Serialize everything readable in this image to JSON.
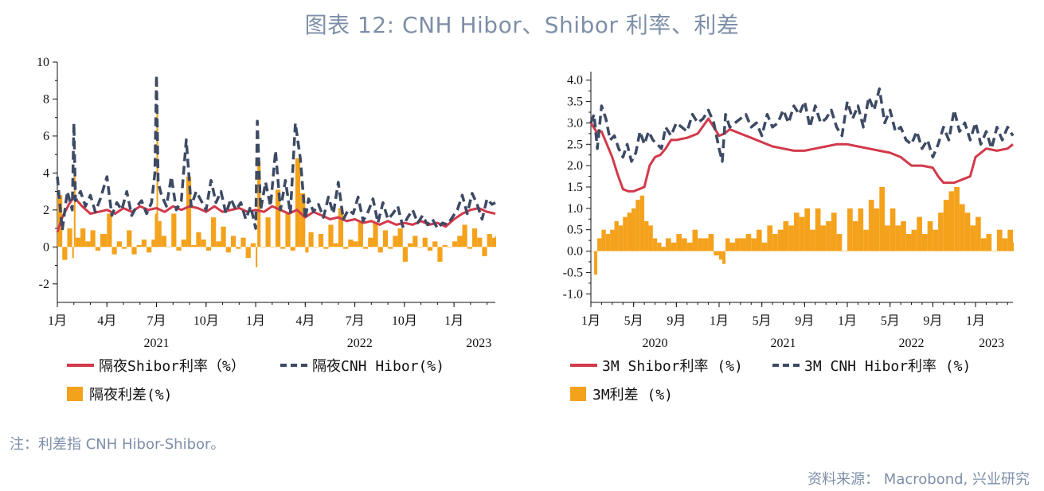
{
  "title": "图表 12: CNH Hibor、Shibor 利率、利差",
  "note": "注：利差指 CNH Hibor-Shibor。",
  "source": "资料来源： Macrobond, 兴业研究",
  "colors": {
    "shibor": "#d23a4b",
    "hibor": "#3d4a64",
    "spread": "#f4a21c",
    "title": "#7e8fa8"
  },
  "legend_left": {
    "shibor": "隔夜Shibor利率（%）",
    "hibor": "隔夜CNH Hibor(%)",
    "spread": "隔夜利差(%)"
  },
  "legend_right": {
    "shibor": "3M Shibor利率 (%)",
    "hibor": "3M CNH Hibor利率 (%)",
    "spread": "3M利差 (%)"
  },
  "chart_data": [
    {
      "type": "line",
      "panel": "left",
      "ylim": [
        -3,
        10
      ],
      "yticks": [
        -2,
        0,
        2,
        4,
        6,
        8,
        10
      ],
      "x_range_months": [
        0,
        26.5
      ],
      "xtick_months": [
        0,
        3,
        6,
        9,
        12,
        15,
        18,
        21,
        24
      ],
      "xtick_labels": [
        "1月",
        "4月",
        "7月",
        "10月",
        "1月",
        "4月",
        "7月",
        "10月",
        "1月"
      ],
      "year_labels": [
        {
          "label": "2021",
          "month": 6
        },
        {
          "label": "2022",
          "month": 18.3
        },
        {
          "label": "2023",
          "month": 25.5
        }
      ],
      "series": [
        {
          "name": "隔夜Shibor利率（%）",
          "style": "solid",
          "x": [
            0,
            0.3,
            0.7,
            1.0,
            1.5,
            2.0,
            2.5,
            3.0,
            3.5,
            4.0,
            4.5,
            5.0,
            5.5,
            6.0,
            6.5,
            7.0,
            7.5,
            8.0,
            8.5,
            9.0,
            9.5,
            10.0,
            10.5,
            11.0,
            11.5,
            12.0,
            12.5,
            13.0,
            13.5,
            14.0,
            14.5,
            15.0,
            15.5,
            16.0,
            16.5,
            17.0,
            17.5,
            18.0,
            18.5,
            19.0,
            19.5,
            20.0,
            20.5,
            21.0,
            21.5,
            22.0,
            22.5,
            23.0,
            23.5,
            24.0,
            24.5,
            25.0,
            25.5,
            26.0,
            26.5
          ],
          "values": [
            0.8,
            1.6,
            2.3,
            2.7,
            2.2,
            1.8,
            1.9,
            2.0,
            1.8,
            2.1,
            1.9,
            2.2,
            2.0,
            2.1,
            1.9,
            2.2,
            2.0,
            2.2,
            2.1,
            1.9,
            2.2,
            1.9,
            2.0,
            2.1,
            1.9,
            2.0,
            1.9,
            2.2,
            2.0,
            1.8,
            2.0,
            1.6,
            1.9,
            1.7,
            1.5,
            1.6,
            1.4,
            1.5,
            1.3,
            1.4,
            1.2,
            1.4,
            1.2,
            1.3,
            1.2,
            1.4,
            1.2,
            1.3,
            1.1,
            1.5,
            1.8,
            2.0,
            2.1,
            1.9,
            1.8
          ]
        },
        {
          "name": "隔夜CNH Hibor(%)",
          "style": "dashed",
          "x": [
            0,
            0.3,
            0.6,
            0.9,
            1.0,
            1.1,
            1.4,
            1.7,
            2.0,
            2.3,
            2.6,
            3.0,
            3.3,
            3.6,
            3.9,
            4.2,
            4.5,
            4.8,
            5.1,
            5.4,
            5.7,
            5.9,
            6.0,
            6.1,
            6.3,
            6.6,
            6.9,
            7.2,
            7.5,
            7.8,
            8.1,
            8.4,
            8.7,
            9.0,
            9.3,
            9.6,
            9.9,
            10.2,
            10.5,
            10.8,
            11.1,
            11.4,
            11.7,
            12.0,
            12.1,
            12.3,
            12.6,
            12.9,
            13.2,
            13.5,
            13.8,
            14.1,
            14.4,
            14.7,
            15.0,
            15.2,
            15.5,
            15.8,
            16.1,
            16.4,
            16.7,
            17.0,
            17.3,
            17.6,
            17.9,
            18.2,
            18.5,
            18.8,
            19.1,
            19.4,
            19.7,
            20.0,
            20.3,
            20.6,
            20.9,
            21.2,
            21.5,
            21.8,
            22.1,
            22.4,
            22.7,
            23.0,
            23.3,
            23.6,
            23.9,
            24.2,
            24.5,
            24.8,
            25.1,
            25.4,
            25.7,
            26.0,
            26.3,
            26.5
          ],
          "values": [
            3.8,
            0.9,
            3.0,
            2.0,
            6.7,
            2.5,
            3.0,
            2.2,
            2.8,
            1.9,
            2.6,
            3.8,
            1.7,
            2.4,
            2.0,
            3.0,
            1.7,
            2.2,
            2.5,
            1.8,
            2.4,
            4.0,
            9.3,
            3.5,
            2.8,
            2.2,
            3.8,
            2.0,
            2.5,
            5.8,
            2.2,
            3.0,
            2.5,
            2.0,
            3.6,
            2.4,
            3.0,
            1.8,
            2.6,
            2.0,
            2.4,
            1.5,
            2.2,
            1.0,
            6.8,
            2.0,
            3.5,
            2.2,
            5.2,
            2.0,
            3.6,
            1.8,
            6.7,
            4.8,
            1.5,
            2.6,
            1.9,
            2.3,
            1.6,
            2.7,
            1.8,
            3.5,
            1.5,
            2.0,
            1.8,
            2.7,
            1.4,
            1.9,
            2.6,
            1.3,
            2.4,
            1.5,
            1.8,
            2.2,
            1.1,
            1.6,
            2.0,
            1.3,
            1.7,
            1.2,
            1.5,
            1.0,
            1.3,
            1.2,
            1.6,
            2.0,
            2.8,
            1.8,
            2.9,
            2.3,
            1.5,
            2.6,
            2.3,
            2.4
          ]
        },
        {
          "name": "隔夜利差(%)",
          "style": "bar",
          "x": [
            0,
            0.3,
            0.6,
            0.9,
            1.0,
            1.1,
            1.4,
            1.7,
            2.0,
            2.3,
            2.6,
            3.0,
            3.3,
            3.6,
            3.9,
            4.2,
            4.5,
            4.8,
            5.1,
            5.4,
            5.7,
            5.9,
            6.0,
            6.1,
            6.3,
            6.6,
            6.9,
            7.2,
            7.5,
            7.8,
            8.1,
            8.4,
            8.7,
            9.0,
            9.3,
            9.6,
            9.9,
            10.2,
            10.5,
            10.8,
            11.1,
            11.4,
            11.7,
            12.0,
            12.1,
            12.3,
            12.6,
            12.9,
            13.2,
            13.5,
            13.8,
            14.1,
            14.4,
            14.7,
            15.0,
            15.2,
            15.5,
            15.8,
            16.1,
            16.4,
            16.7,
            17.0,
            17.3,
            17.6,
            17.9,
            18.2,
            18.5,
            18.8,
            19.1,
            19.4,
            19.7,
            20.0,
            20.3,
            20.6,
            20.9,
            21.2,
            21.5,
            21.8,
            22.1,
            22.4,
            22.7,
            23.0,
            23.3,
            23.6,
            23.9,
            24.2,
            24.5,
            24.8,
            25.1,
            25.4,
            25.7,
            26.0,
            26.3,
            26.5
          ],
          "values": [
            2.8,
            -0.7,
            1.0,
            -0.6,
            4.2,
            0.5,
            1.0,
            0.3,
            0.9,
            -0.2,
            0.7,
            1.8,
            -0.4,
            0.3,
            -0.1,
            0.9,
            -0.4,
            0.1,
            0.4,
            -0.3,
            0.4,
            1.8,
            7.5,
            1.4,
            0.6,
            0.0,
            1.8,
            -0.2,
            0.4,
            3.8,
            0.1,
            0.8,
            0.4,
            -0.2,
            1.6,
            0.3,
            1.1,
            -0.3,
            0.6,
            -0.1,
            0.5,
            -0.6,
            0.2,
            -1.1,
            4.6,
            0.0,
            1.6,
            0.0,
            3.1,
            -0.1,
            1.8,
            -0.2,
            4.8,
            2.9,
            -0.3,
            0.8,
            0.0,
            0.7,
            -0.1,
            1.2,
            0.2,
            2.1,
            -0.1,
            0.4,
            0.3,
            1.4,
            -0.1,
            0.5,
            1.3,
            -0.3,
            0.9,
            -0.1,
            0.6,
            1.0,
            -0.8,
            0.2,
            0.6,
            0.0,
            0.5,
            -0.2,
            0.3,
            -0.8,
            0.1,
            0.0,
            0.3,
            0.6,
            1.2,
            -0.1,
            1.0,
            0.5,
            -0.5,
            0.7,
            0.5,
            0.6
          ]
        }
      ]
    },
    {
      "type": "line",
      "panel": "right",
      "ylim": [
        -1.2,
        4.2
      ],
      "yticks": [
        -1.0,
        -0.5,
        0.0,
        0.5,
        1.0,
        1.5,
        2.0,
        2.5,
        3.0,
        3.5,
        4.0
      ],
      "x_range_months": [
        0,
        39.5
      ],
      "xtick_months": [
        0,
        4,
        8,
        12,
        16,
        20,
        24,
        28,
        32,
        36
      ],
      "xtick_labels": [
        "1月",
        "5月",
        "9月",
        "1月",
        "5月",
        "9月",
        "1月",
        "5月",
        "9月",
        "1月"
      ],
      "year_labels": [
        {
          "label": "2020",
          "month": 6
        },
        {
          "label": "2021",
          "month": 18
        },
        {
          "label": "2022",
          "month": 30
        },
        {
          "label": "2023",
          "month": 37.5
        }
      ],
      "series": [
        {
          "name": "3M Shibor利率 (%)",
          "style": "solid",
          "x": [
            0,
            0.5,
            1,
            1.5,
            2,
            2.5,
            3,
            3.5,
            4,
            4.5,
            5,
            5.5,
            6,
            6.5,
            7,
            7.5,
            8,
            9,
            10,
            11,
            11.5,
            12,
            12.5,
            13,
            14,
            15,
            16,
            17,
            18,
            19,
            20,
            21,
            22,
            23,
            24,
            25,
            26,
            27,
            28,
            29,
            30,
            31,
            32,
            32.5,
            33,
            34,
            35,
            35.5,
            36,
            37,
            38,
            39,
            39.5
          ],
          "values": [
            3.0,
            2.8,
            2.8,
            2.5,
            2.2,
            1.8,
            1.45,
            1.4,
            1.4,
            1.45,
            1.5,
            2.0,
            2.2,
            2.25,
            2.4,
            2.6,
            2.6,
            2.65,
            2.75,
            3.1,
            2.9,
            2.7,
            2.75,
            2.85,
            2.75,
            2.65,
            2.55,
            2.45,
            2.4,
            2.35,
            2.35,
            2.4,
            2.45,
            2.5,
            2.5,
            2.45,
            2.4,
            2.35,
            2.3,
            2.2,
            2.0,
            2.0,
            1.95,
            1.75,
            1.6,
            1.6,
            1.7,
            1.75,
            2.2,
            2.4,
            2.35,
            2.4,
            2.5
          ]
        },
        {
          "name": "3M CNH Hibor利率 (%)",
          "style": "dashed",
          "x": [
            0,
            0.3,
            0.6,
            1,
            1.4,
            1.8,
            2.2,
            2.6,
            3,
            3.4,
            3.8,
            4.2,
            4.6,
            5,
            5.4,
            5.8,
            6.2,
            6.6,
            7,
            7.5,
            8,
            8.5,
            9,
            9.5,
            10,
            10.5,
            11,
            11.5,
            12,
            12.3,
            12.6,
            13,
            13.5,
            14,
            14.5,
            15,
            15.5,
            16,
            16.5,
            17,
            17.5,
            18,
            18.5,
            19,
            19.5,
            20,
            20.5,
            21,
            21.5,
            22,
            22.5,
            23,
            23.5,
            24,
            24.5,
            25,
            25.5,
            26,
            26.5,
            27,
            27.5,
            28,
            28.5,
            29,
            29.5,
            30,
            30.5,
            31,
            31.5,
            32,
            32.5,
            33,
            33.5,
            34,
            34.5,
            35,
            35.5,
            36,
            36.5,
            37,
            37.5,
            38,
            38.5,
            39,
            39.5
          ],
          "values": [
            3.0,
            3.2,
            2.4,
            3.4,
            3.1,
            2.6,
            2.7,
            2.4,
            2.2,
            2.5,
            2.1,
            2.3,
            2.8,
            2.5,
            2.8,
            2.6,
            2.5,
            2.4,
            2.9,
            2.7,
            3.0,
            2.9,
            2.8,
            3.2,
            3.0,
            3.1,
            3.3,
            3.0,
            2.4,
            2.1,
            3.2,
            2.9,
            3.0,
            3.1,
            3.2,
            2.9,
            3.0,
            2.7,
            3.2,
            2.9,
            3.0,
            3.3,
            3.0,
            3.4,
            3.2,
            3.5,
            2.9,
            3.4,
            3.0,
            3.1,
            3.3,
            2.9,
            2.7,
            3.5,
            3.1,
            3.4,
            2.9,
            3.6,
            3.3,
            3.8,
            3.0,
            3.3,
            2.8,
            2.9,
            2.6,
            2.5,
            2.8,
            2.4,
            2.6,
            2.2,
            2.5,
            2.9,
            2.6,
            3.3,
            2.8,
            3.0,
            2.6,
            3.0,
            2.5,
            2.8,
            2.4,
            2.9,
            2.6,
            2.9,
            2.7
          ]
        },
        {
          "name": "3M利差 (%)",
          "style": "bar",
          "x": [
            0,
            0.3,
            0.6,
            1,
            1.4,
            1.8,
            2.2,
            2.6,
            3,
            3.4,
            3.8,
            4.2,
            4.6,
            5,
            5.4,
            5.8,
            6.2,
            6.6,
            7,
            7.5,
            8,
            8.5,
            9,
            9.5,
            10,
            10.5,
            11,
            11.5,
            12,
            12.3,
            12.6,
            13,
            13.5,
            14,
            14.5,
            15,
            15.5,
            16,
            16.5,
            17,
            17.5,
            18,
            18.5,
            19,
            19.5,
            20,
            20.5,
            21,
            21.5,
            22,
            22.5,
            23,
            23.5,
            24,
            24.5,
            25,
            25.5,
            26,
            26.5,
            27,
            27.5,
            28,
            28.5,
            29,
            29.5,
            30,
            30.5,
            31,
            31.5,
            32,
            32.5,
            33,
            33.5,
            34,
            34.5,
            35,
            35.5,
            36,
            36.5,
            37,
            37.5,
            38,
            38.5,
            39,
            39.5
          ],
          "values": [
            0.0,
            -0.55,
            0.3,
            0.5,
            0.4,
            0.5,
            0.7,
            0.6,
            0.8,
            0.9,
            1.0,
            1.2,
            1.3,
            0.7,
            0.6,
            0.3,
            0.2,
            0.1,
            0.3,
            0.2,
            0.4,
            0.3,
            0.2,
            0.5,
            0.3,
            0.3,
            0.4,
            -0.1,
            -0.2,
            -0.3,
            0.3,
            0.2,
            0.3,
            0.3,
            0.4,
            0.3,
            0.5,
            0.2,
            0.6,
            0.4,
            0.5,
            0.7,
            0.6,
            0.9,
            0.8,
            1.0,
            0.5,
            1.0,
            0.6,
            0.7,
            0.9,
            0.4,
            0.0,
            1.0,
            0.7,
            1.0,
            0.5,
            1.2,
            1.0,
            1.5,
            0.6,
            1.0,
            0.6,
            0.7,
            0.4,
            0.5,
            0.8,
            0.4,
            0.7,
            0.5,
            0.9,
            1.2,
            1.4,
            1.5,
            1.1,
            0.9,
            0.6,
            0.8,
            0.3,
            0.4,
            0.0,
            0.5,
            0.3,
            0.5,
            0.2
          ]
        }
      ]
    }
  ]
}
